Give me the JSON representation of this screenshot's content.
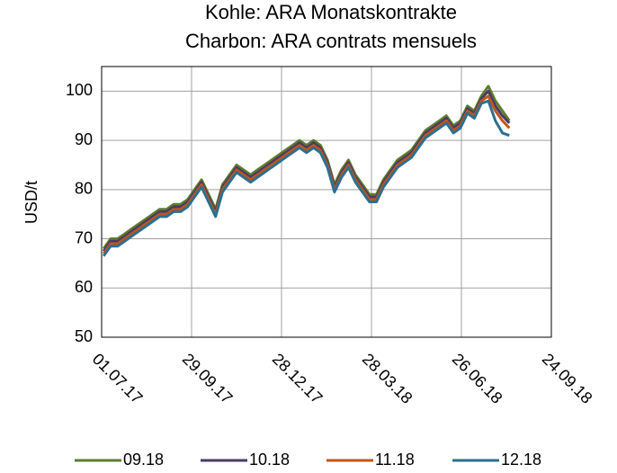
{
  "chart_data": {
    "type": "line",
    "title": "Kohle: ARA Monatskontrakte",
    "subtitle": "Charbon: ARA contrats mensuels",
    "y_label": "USD/t",
    "x": [
      "2017-07-03",
      "2017-07-10",
      "2017-07-17",
      "2017-07-24",
      "2017-07-31",
      "2017-08-07",
      "2017-08-14",
      "2017-08-21",
      "2017-08-28",
      "2017-09-04",
      "2017-09-11",
      "2017-09-18",
      "2017-09-25",
      "2017-10-02",
      "2017-10-09",
      "2017-10-16",
      "2017-10-23",
      "2017-10-30",
      "2017-11-06",
      "2017-11-13",
      "2017-11-20",
      "2017-11-27",
      "2017-12-04",
      "2017-12-11",
      "2017-12-18",
      "2017-12-25",
      "2018-01-01",
      "2018-01-08",
      "2018-01-15",
      "2018-01-22",
      "2018-01-29",
      "2018-02-05",
      "2018-02-12",
      "2018-02-19",
      "2018-02-26",
      "2018-03-05",
      "2018-03-12",
      "2018-03-19",
      "2018-03-26",
      "2018-04-02",
      "2018-04-09",
      "2018-04-16",
      "2018-04-23",
      "2018-04-30",
      "2018-05-07",
      "2018-05-14",
      "2018-05-21",
      "2018-05-28",
      "2018-06-04",
      "2018-06-11",
      "2018-06-18",
      "2018-06-25",
      "2018-07-02",
      "2018-07-09",
      "2018-07-16",
      "2018-07-23",
      "2018-07-30",
      "2018-08-06",
      "2018-08-13"
    ],
    "series": [
      {
        "name": "09.18",
        "color": "#5e7d2f",
        "values": [
          68,
          70,
          70,
          71,
          72,
          73,
          74,
          75,
          76,
          76,
          77,
          77,
          78,
          80,
          82,
          79,
          76,
          81,
          83,
          85,
          84,
          83,
          84,
          85,
          86,
          87,
          88,
          89,
          90,
          89,
          90,
          89,
          86,
          81,
          84,
          86,
          83,
          81,
          79,
          79,
          82,
          84,
          86,
          87,
          88,
          90,
          92,
          93,
          94,
          95,
          93,
          94,
          97,
          96,
          99,
          101,
          98,
          96,
          94
        ]
      },
      {
        "name": "10.18",
        "color": "#4b3a66",
        "values": [
          67.5,
          69.5,
          69.5,
          70.5,
          71.5,
          72.5,
          73.5,
          74.5,
          75.5,
          75.5,
          76.5,
          76.5,
          77.5,
          79.5,
          81.5,
          78.5,
          75.5,
          80.5,
          82.5,
          84.5,
          83.5,
          82.5,
          83.5,
          84.5,
          85.5,
          86.5,
          87.5,
          88.5,
          89.5,
          88.5,
          89.5,
          88.5,
          85.5,
          80.5,
          83.5,
          85.5,
          82.5,
          80.5,
          78.5,
          78.5,
          81.5,
          83.5,
          85.5,
          86.5,
          87.5,
          89.5,
          91.5,
          92.5,
          93.5,
          94.5,
          92.5,
          93.5,
          96.5,
          95.5,
          98.5,
          100,
          97,
          95,
          93.5
        ]
      },
      {
        "name": "11.18",
        "color": "#c0561a",
        "values": [
          67,
          69,
          69,
          70,
          71,
          72,
          73,
          74,
          75,
          75,
          76,
          76,
          77,
          79,
          81,
          78,
          75,
          80,
          82,
          84,
          83,
          82,
          83,
          84,
          85,
          86,
          87,
          88,
          89,
          88,
          89,
          88,
          85,
          80,
          83,
          85,
          82,
          80,
          78,
          78,
          81,
          83,
          85,
          86,
          87,
          89,
          91,
          92,
          93,
          94,
          92,
          93,
          96,
          95,
          98,
          99,
          96,
          94,
          92.5
        ]
      },
      {
        "name": "12.18",
        "color": "#2e6f8e",
        "values": [
          66.5,
          68.5,
          68.5,
          69.5,
          70.5,
          71.5,
          72.5,
          73.5,
          74.5,
          74.5,
          75.5,
          75.5,
          76.5,
          78.5,
          80.5,
          77.5,
          74.5,
          79.5,
          81.5,
          83.5,
          82.5,
          81.5,
          82.5,
          83.5,
          84.5,
          85.5,
          86.5,
          87.5,
          88.5,
          87.5,
          88.5,
          87.5,
          84.5,
          79.5,
          82.5,
          84.5,
          81.5,
          79.5,
          77.5,
          77.5,
          80.5,
          82.5,
          84.5,
          85.5,
          86.5,
          88.5,
          90.5,
          91.5,
          92.5,
          93.5,
          91.5,
          92.5,
          95.5,
          94.5,
          97.5,
          98,
          94,
          91.5,
          91
        ]
      }
    ],
    "xlim": [
      "2017-07-01",
      "2018-09-24"
    ],
    "xticks": [
      {
        "value": "2017-07-01",
        "label": "01.07.17"
      },
      {
        "value": "2017-09-29",
        "label": "29.09.17"
      },
      {
        "value": "2017-12-28",
        "label": "28.12.17"
      },
      {
        "value": "2018-03-28",
        "label": "28.03.18"
      },
      {
        "value": "2018-06-26",
        "label": "26.06.18"
      },
      {
        "value": "2018-09-24",
        "label": "24.09.18"
      }
    ],
    "ylim": [
      50,
      105
    ],
    "yticks": [
      50,
      60,
      70,
      80,
      90,
      100
    ],
    "grid": true,
    "legend": "bottom"
  }
}
